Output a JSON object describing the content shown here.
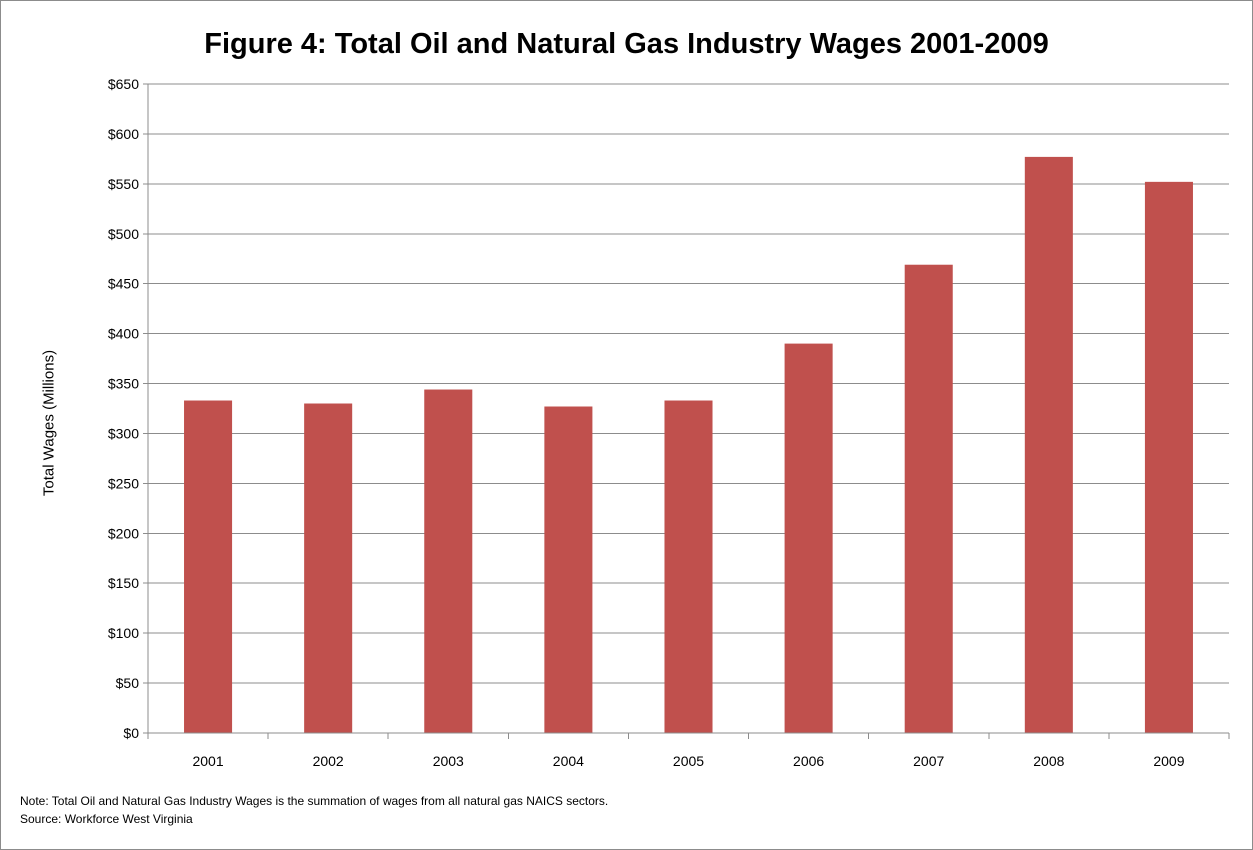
{
  "chart_data": {
    "type": "bar",
    "title": "Figure 4: Total Oil and Natural Gas Industry Wages 2001-2009",
    "ylabel": "Total Wages (Millions)",
    "xlabel": "",
    "categories": [
      "2001",
      "2002",
      "2003",
      "2004",
      "2005",
      "2006",
      "2007",
      "2008",
      "2009"
    ],
    "values": [
      333,
      330,
      344,
      327,
      333,
      390,
      469,
      577,
      552
    ],
    "ylim": [
      0,
      650
    ],
    "ytick_labels": [
      "$0",
      "$50",
      "$100",
      "$150",
      "$200",
      "$250",
      "$300",
      "$350",
      "$400",
      "$450",
      "$500",
      "$550",
      "$600",
      "$650"
    ],
    "grid": true,
    "legend": "none",
    "bar_color": "#c0504d",
    "grid_color": "#8c8c8c",
    "axis_color": "#8c8c8c"
  },
  "footnotes": {
    "note": "Note: Total Oil and Natural Gas Industry Wages is the summation of wages from all natural gas NAICS sectors.",
    "source": "Source: Workforce West Virginia"
  }
}
